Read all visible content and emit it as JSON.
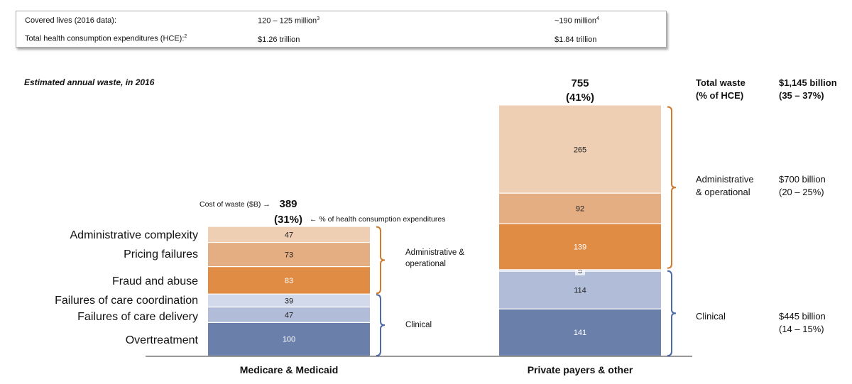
{
  "info_box": {
    "rows": [
      {
        "label": "Covered lives (2016 data):",
        "col1": "120 – 125 million",
        "col1_sup": "3",
        "col2": "~190 million",
        "col2_sup": "4"
      },
      {
        "label": "Total health consumption expenditures (HCE):",
        "label_sup": "2",
        "col1": "$1.26 trillion",
        "col2": "$1.84 trillion"
      }
    ]
  },
  "subtitle": "Estimated annual waste, in 2016",
  "annotations": {
    "cost_label": "Cost of waste ($B) →",
    "pct_label": "← % of health consumption expenditures"
  },
  "right_panel": {
    "total_label_1": "Total waste",
    "total_label_2": "(% of HCE)",
    "total_value_1": "$1,145 billion",
    "total_value_2": "(35 – 37%)",
    "admin_label_1": "Administrative",
    "admin_label_2": "& operational",
    "admin_value_1": "$700 billion",
    "admin_value_2": "(20 – 25%)",
    "clinical_label": "Clinical",
    "clinical_value_1": "$445 billion",
    "clinical_value_2": "(14 – 15%)"
  },
  "group_labels": {
    "mm_admin_1": "Administrative &",
    "mm_admin_2": "operational",
    "mm_clinical": "Clinical"
  },
  "chart_data": {
    "type": "bar",
    "stacked": true,
    "categories": [
      "Medicare & Medicaid",
      "Private payers & other"
    ],
    "totals": [
      "389",
      "755"
    ],
    "total_pcts": [
      "(31%)",
      "(41%)"
    ],
    "segment_labels": [
      "Overtreatment",
      "Failures of care delivery",
      "Failures of care coordination",
      "Fraud and abuse",
      "Pricing failures",
      "Administrative complexity"
    ],
    "series": [
      {
        "name": "Overtreatment",
        "values": [
          100,
          141
        ],
        "color": "#6b7fab"
      },
      {
        "name": "Failures of care delivery",
        "values": [
          47,
          114
        ],
        "color": "#b0bcd8"
      },
      {
        "name": "Failures of care coordination",
        "values": [
          39,
          5
        ],
        "color": "#d2d9ea"
      },
      {
        "name": "Fraud and abuse",
        "values": [
          83,
          139
        ],
        "color": "#e08c44"
      },
      {
        "name": "Pricing failures",
        "values": [
          73,
          92
        ],
        "color": "#e5ae82"
      },
      {
        "name": "Administrative complexity",
        "values": [
          47,
          265
        ],
        "color": "#efcfb4"
      }
    ],
    "bracket_colors": {
      "admin": "#d07a2e",
      "clinical": "#4e6aa6"
    }
  }
}
